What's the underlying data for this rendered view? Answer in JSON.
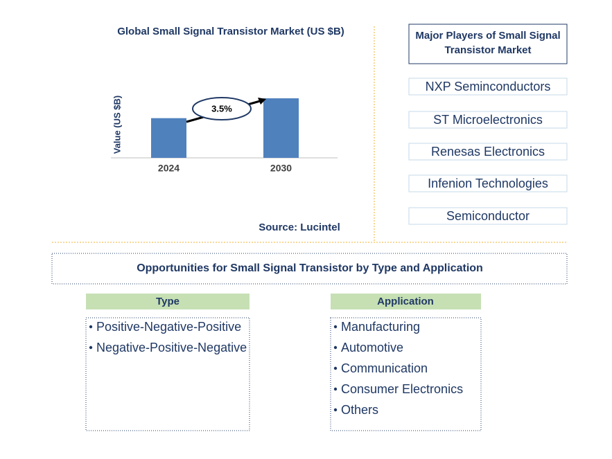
{
  "chart_data": {
    "type": "bar",
    "title": "Global Small Signal Transistor Market (US $B)",
    "y_label": "Value (US $B)",
    "categories": [
      "2024",
      "2030"
    ],
    "values": [
      2.0,
      3.0
    ],
    "color": "#4f81bd",
    "annotation": "3.5%",
    "source": "Source: Lucintel"
  },
  "players": {
    "title": "Major Players of Small Signal Transistor Market",
    "items": [
      "NXP Seminconductors",
      "ST Microelectronics",
      "Renesas Electronics",
      "Infenion Technologies",
      "Semiconductor"
    ]
  },
  "opportunities": {
    "title": "Opportunities for Small Signal Transistor by Type and Application",
    "type": {
      "header": "Type",
      "items": [
        "Positive-Negative-Positive",
        "Negative-Positive-Negative"
      ]
    },
    "application": {
      "header": "Application",
      "items": [
        "Manufacturing",
        "Automotive",
        "Communication",
        "Consumer Electronics",
        "Others"
      ]
    }
  }
}
